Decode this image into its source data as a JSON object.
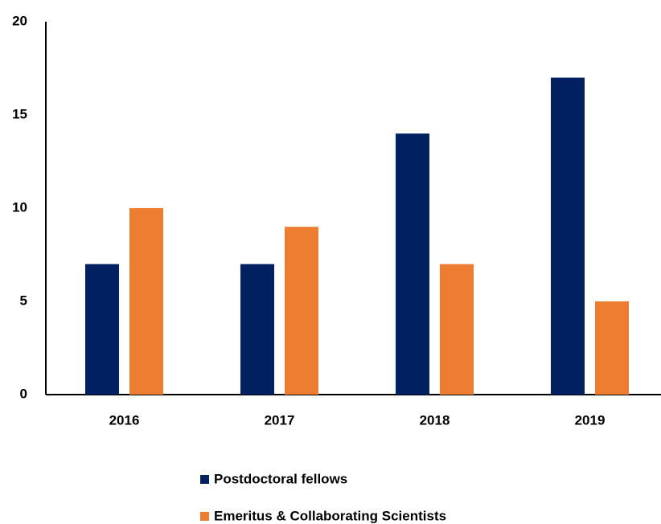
{
  "chart_data": {
    "type": "bar",
    "categories": [
      "2016",
      "2017",
      "2018",
      "2019"
    ],
    "series": [
      {
        "name": "Postdoctoral fellows",
        "color": "#002060",
        "values": [
          7,
          7,
          14,
          17
        ]
      },
      {
        "name": "Emeritus & Collaborating Scientists",
        "color": "#ED7D31",
        "values": [
          10,
          9,
          7,
          5
        ]
      }
    ],
    "ylim": [
      0,
      20
    ],
    "yticks": [
      0,
      5,
      10,
      15,
      20
    ],
    "grid": false
  }
}
